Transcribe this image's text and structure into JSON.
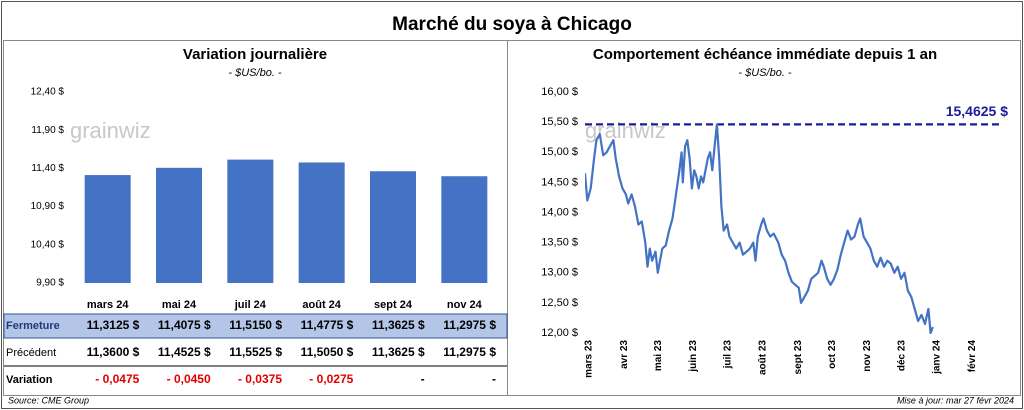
{
  "title": "Marché du soya à Chicago",
  "watermark": "grainwiz",
  "chart_data": [
    {
      "type": "bar",
      "title": "Variation journalière",
      "subtitle": "- $US/bo. -",
      "categories": [
        "mars 24",
        "mai 24",
        "juil 24",
        "août 24",
        "sept 24",
        "nov 24"
      ],
      "values": [
        11.3125,
        11.4075,
        11.515,
        11.4775,
        11.3625,
        11.2975
      ],
      "color": "#4472c4",
      "ylim": [
        9.9,
        12.4
      ],
      "yticks": [
        {
          "value": 9.9,
          "label": "9,90 $"
        },
        {
          "value": 10.4,
          "label": "10,40 $"
        },
        {
          "value": 10.9,
          "label": "10,90 $"
        },
        {
          "value": 11.4,
          "label": "11,40 $"
        },
        {
          "value": 11.9,
          "label": "11,90 $"
        },
        {
          "value": 12.4,
          "label": "12,40 $"
        }
      ],
      "grid": false
    },
    {
      "type": "line",
      "title": "Comportement échéance immédiate depuis 1 an",
      "subtitle": "- $US/bo. -",
      "x": [
        0,
        2,
        5,
        8,
        10,
        13,
        16,
        19,
        22,
        25,
        27,
        30,
        33,
        36,
        38,
        41,
        44,
        47,
        50,
        53,
        55,
        57,
        59,
        62,
        64,
        66,
        68,
        71,
        74,
        77,
        80,
        83,
        85,
        86,
        88,
        90,
        92,
        94,
        96,
        98,
        100,
        102,
        104,
        106,
        108,
        110,
        112,
        114,
        116,
        118,
        120,
        122,
        125,
        127,
        130,
        133,
        136,
        139,
        142,
        145,
        148,
        150,
        152,
        155,
        157,
        160,
        163,
        166,
        170,
        173,
        176,
        179,
        182,
        185,
        188,
        190,
        193,
        196,
        199,
        202,
        205,
        208,
        210,
        213,
        216,
        219,
        222,
        225,
        228,
        231,
        234,
        237,
        240,
        242,
        245,
        248,
        251,
        254,
        257,
        260,
        263,
        266,
        269,
        272,
        275,
        278,
        281,
        284,
        287,
        290,
        293,
        296,
        299,
        302,
        304,
        306
      ],
      "series": [
        {
          "name": "Échéance immédiate",
          "color": "#4472c4",
          "values": [
            14.65,
            14.2,
            14.4,
            14.9,
            15.2,
            15.3,
            14.95,
            15.0,
            15.1,
            15.2,
            14.9,
            14.6,
            14.4,
            14.3,
            14.15,
            14.3,
            14.1,
            13.8,
            13.85,
            13.5,
            13.1,
            13.4,
            13.2,
            13.35,
            13.0,
            13.2,
            13.4,
            13.45,
            13.7,
            13.9,
            14.3,
            14.7,
            15.0,
            14.5,
            15.1,
            15.2,
            14.9,
            14.4,
            14.7,
            14.6,
            14.4,
            14.6,
            14.5,
            14.7,
            14.9,
            15.0,
            14.7,
            15.1,
            15.46,
            14.9,
            14.1,
            13.7,
            13.8,
            13.6,
            13.5,
            13.4,
            13.5,
            13.3,
            13.35,
            13.4,
            13.5,
            13.2,
            13.6,
            13.8,
            13.9,
            13.7,
            13.6,
            13.65,
            13.5,
            13.3,
            13.2,
            13.0,
            12.85,
            12.8,
            12.75,
            12.5,
            12.6,
            12.7,
            12.9,
            12.95,
            13.0,
            13.2,
            13.1,
            12.9,
            12.8,
            12.9,
            13.05,
            13.3,
            13.5,
            13.7,
            13.55,
            13.6,
            13.8,
            13.9,
            13.6,
            13.5,
            13.4,
            13.2,
            13.1,
            13.25,
            13.1,
            13.2,
            13.15,
            13.0,
            13.1,
            12.9,
            13.0,
            12.7,
            12.6,
            12.4,
            12.2,
            12.3,
            12.15,
            12.4,
            12.0,
            12.1
          ]
        }
      ],
      "xlim": [
        0,
        365
      ],
      "xticks": [
        {
          "value": 0,
          "label": "mars 23"
        },
        {
          "value": 31,
          "label": "avr 23"
        },
        {
          "value": 61,
          "label": "mai 23"
        },
        {
          "value": 92,
          "label": "juin 23"
        },
        {
          "value": 122,
          "label": "juil 23"
        },
        {
          "value": 153,
          "label": "août 23"
        },
        {
          "value": 184,
          "label": "sept 23"
        },
        {
          "value": 214,
          "label": "oct 23"
        },
        {
          "value": 245,
          "label": "nov 23"
        },
        {
          "value": 275,
          "label": "déc 23"
        },
        {
          "value": 306,
          "label": "janv 24"
        },
        {
          "value": 337,
          "label": "févr 24"
        }
      ],
      "ylim": [
        12,
        16
      ],
      "yticks": [
        {
          "value": 12,
          "label": "12,00 $"
        },
        {
          "value": 12.5,
          "label": "12,50 $"
        },
        {
          "value": 13,
          "label": "13,00 $"
        },
        {
          "value": 13.5,
          "label": "13,50 $"
        },
        {
          "value": 14,
          "label": "14,00 $"
        },
        {
          "value": 14.5,
          "label": "14,50 $"
        },
        {
          "value": 15,
          "label": "15,00 $"
        },
        {
          "value": 15.5,
          "label": "15,50 $"
        },
        {
          "value": 16,
          "label": "16,00 $"
        }
      ],
      "reference_line": {
        "value": 15.4625,
        "label": "15,4625 $",
        "color": "#1c1c9a"
      },
      "grid": false
    }
  ],
  "table": {
    "rows": [
      {
        "label": "Fermeture",
        "cells": [
          "11,3125 $",
          "11,4075 $",
          "11,5150 $",
          "11,4775 $",
          "11,3625 $",
          "11,2975 $"
        ]
      },
      {
        "label": "Précédent",
        "cells": [
          "11,3600 $",
          "11,4525 $",
          "11,5525 $",
          "11,5050 $",
          "11,3625 $",
          "11,2975 $"
        ]
      },
      {
        "label": "Variation",
        "cells": [
          "- 0,0475",
          "- 0,0450",
          "- 0,0375",
          "- 0,0275",
          "-",
          "-"
        ],
        "colors": [
          "#e00000",
          "#e00000",
          "#e00000",
          "#e00000",
          "#000000",
          "#000000"
        ]
      }
    ]
  },
  "source": "Source: CME Group",
  "updated": "Mise à jour: mar 27 févr 2024"
}
